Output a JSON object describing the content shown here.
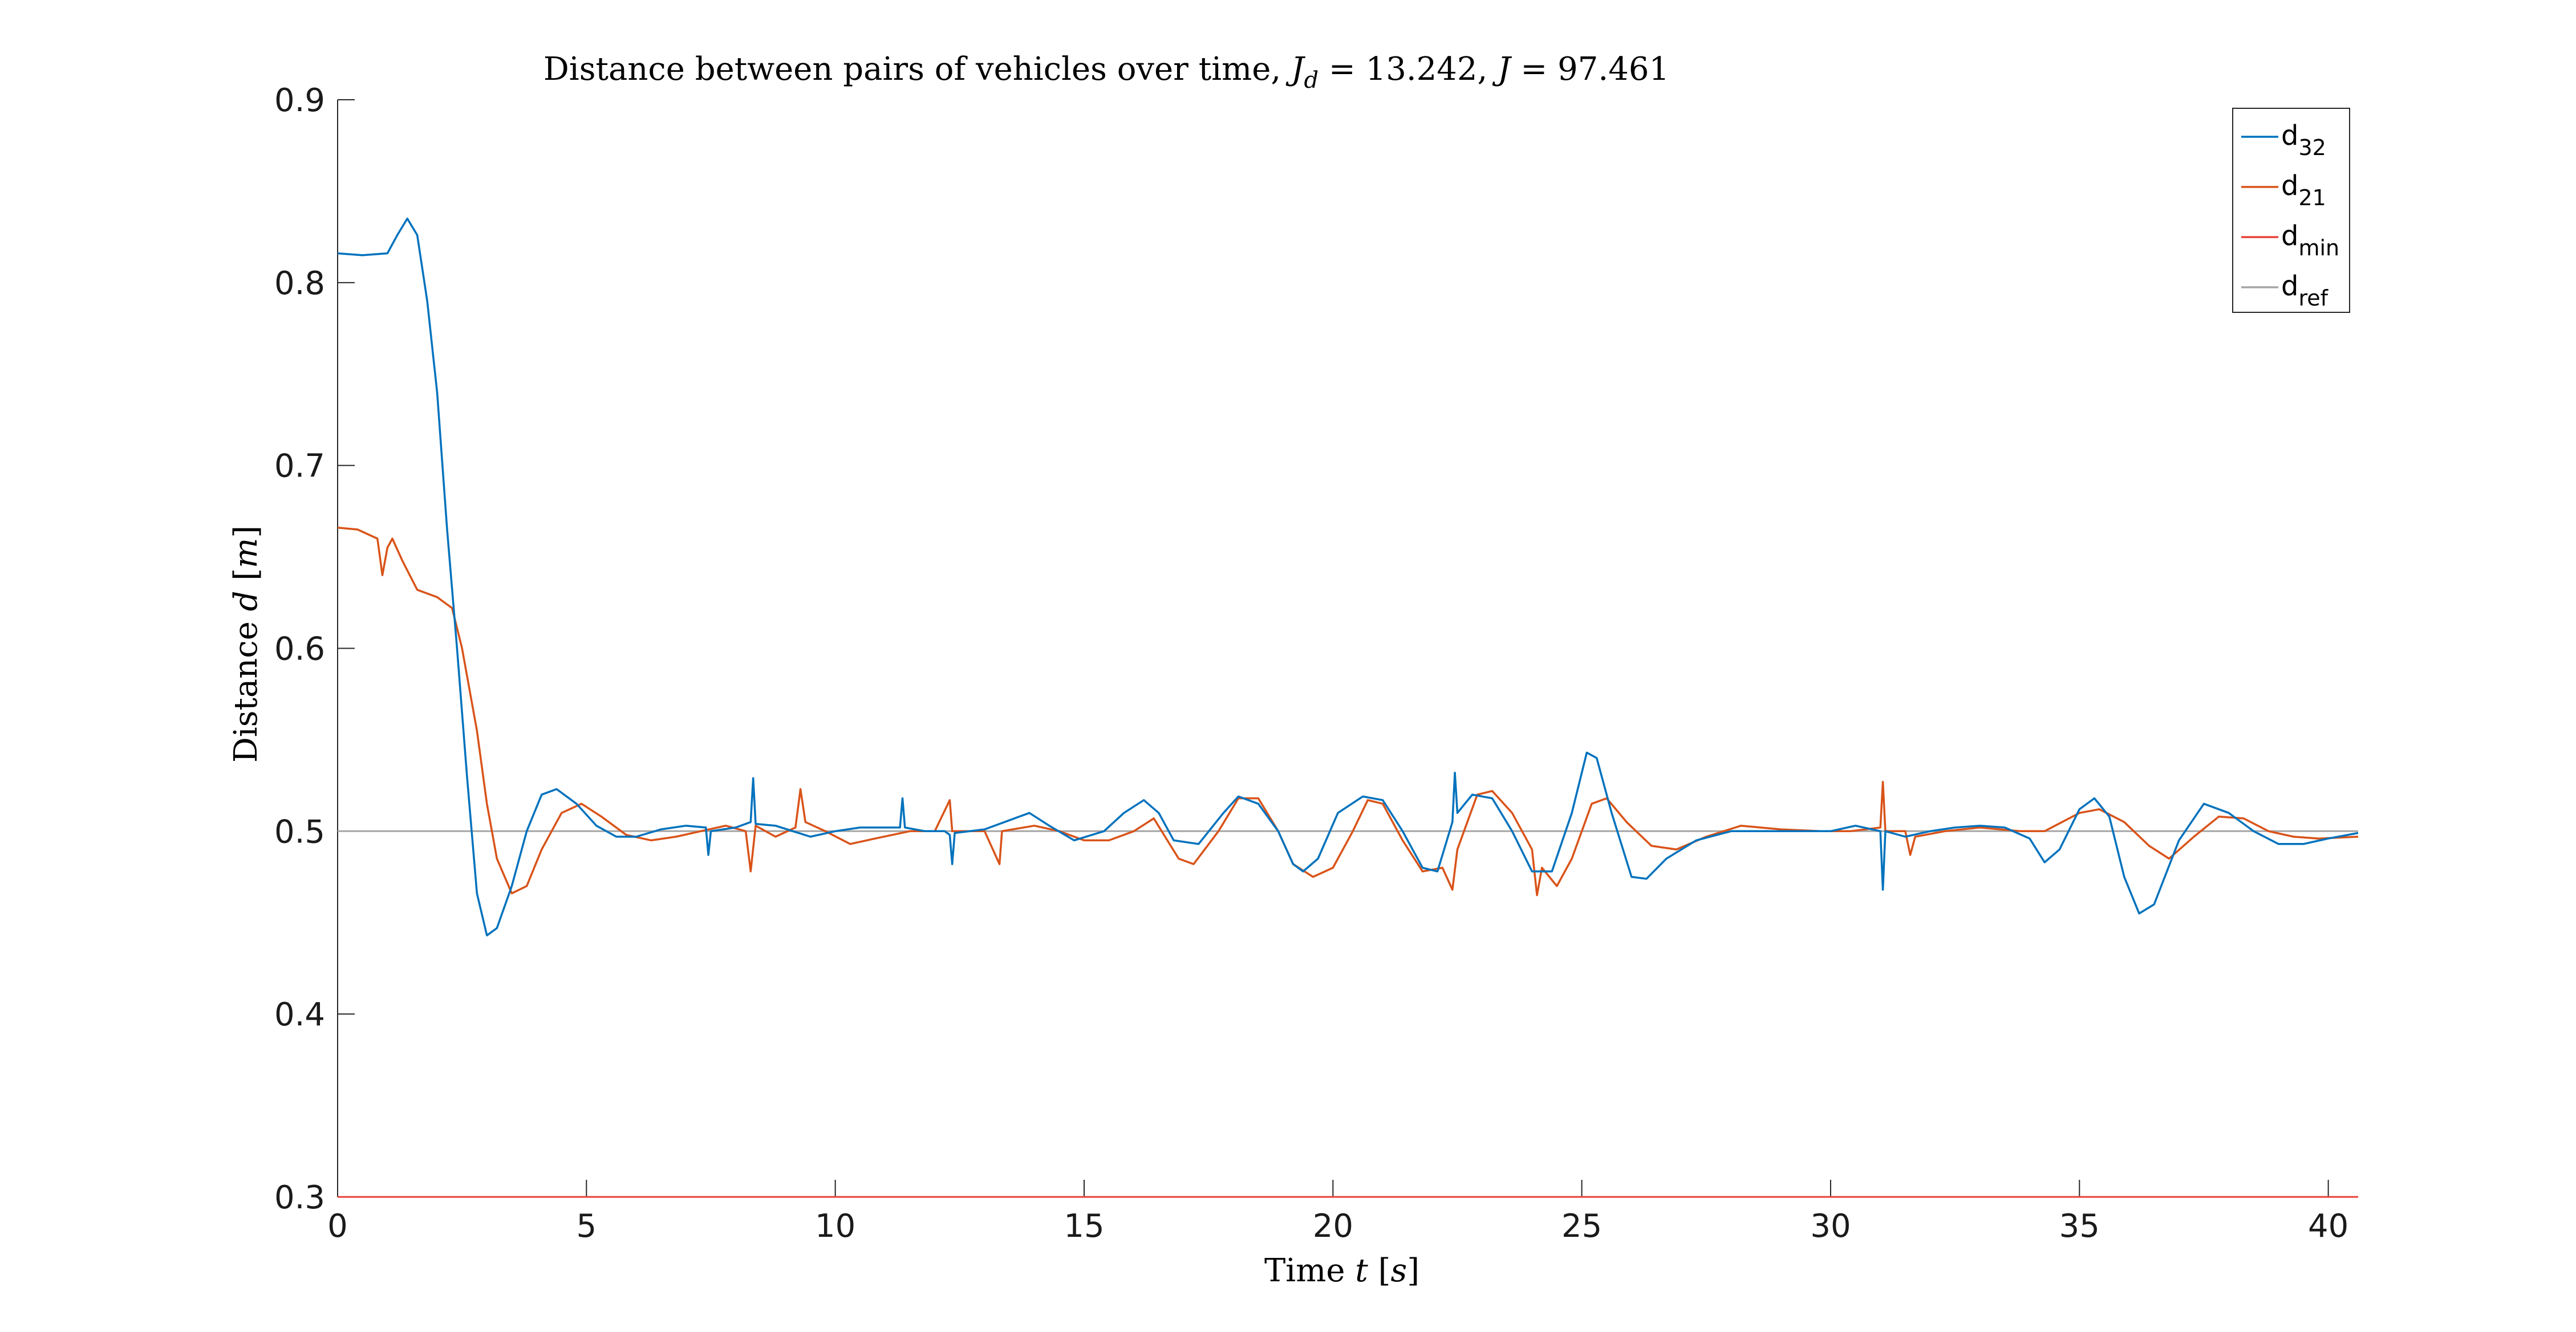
{
  "chart_data": {
    "type": "line",
    "title": "Distance between pairs of vehicles over time, J_d = 13.242, J = 97.461",
    "title_parts": {
      "prefix": "Distance between pairs of vehicles over time, ",
      "jd_symbol": "J",
      "jd_sub": "d",
      "jd_value": " = 13.242, ",
      "j_symbol": "J",
      "j_value": " = 97.461"
    },
    "xlabel": "Time t [s]",
    "xlabel_parts": {
      "prefix": "Time ",
      "var": "t",
      "unit_open": " [",
      "unit": "s",
      "unit_close": "]"
    },
    "ylabel": "Distance d [m]",
    "ylabel_parts": {
      "prefix": "Distance ",
      "var": "d",
      "unit_open": " [",
      "unit": "m",
      "unit_close": "]"
    },
    "xlim": [
      0,
      40.6
    ],
    "ylim": [
      0.3,
      0.9
    ],
    "xticks": [
      0,
      5,
      10,
      15,
      20,
      25,
      30,
      35,
      40
    ],
    "yticks": [
      0.3,
      0.4,
      0.5,
      0.6,
      0.7,
      0.8,
      0.9
    ],
    "xtick_labels": [
      "0",
      "5",
      "10",
      "15",
      "20",
      "25",
      "30",
      "35",
      "40"
    ],
    "ytick_labels": [
      "0.3",
      "0.4",
      "0.5",
      "0.6",
      "0.7",
      "0.8",
      "0.9"
    ],
    "grid": false,
    "legend_position": "top-right",
    "series": [
      {
        "name": "d32",
        "label_base": "d",
        "label_sub": "32",
        "color": "#0072BD",
        "points": [
          [
            0,
            0.816
          ],
          [
            0.5,
            0.815
          ],
          [
            1.0,
            0.816
          ],
          [
            1.2,
            0.826
          ],
          [
            1.4,
            0.835
          ],
          [
            1.6,
            0.826
          ],
          [
            1.8,
            0.79
          ],
          [
            2.0,
            0.74
          ],
          [
            2.2,
            0.665
          ],
          [
            2.4,
            0.6
          ],
          [
            2.6,
            0.53
          ],
          [
            2.8,
            0.466
          ],
          [
            3.0,
            0.443
          ],
          [
            3.2,
            0.447
          ],
          [
            3.5,
            0.47
          ],
          [
            3.8,
            0.5
          ],
          [
            4.1,
            0.52
          ],
          [
            4.4,
            0.523
          ],
          [
            4.8,
            0.515
          ],
          [
            5.2,
            0.503
          ],
          [
            5.6,
            0.497
          ],
          [
            6.0,
            0.497
          ],
          [
            6.5,
            0.501
          ],
          [
            7.0,
            0.503
          ],
          [
            7.4,
            0.502
          ],
          [
            7.45,
            0.487
          ],
          [
            7.5,
            0.5
          ],
          [
            8.0,
            0.502
          ],
          [
            8.3,
            0.505
          ],
          [
            8.35,
            0.529
          ],
          [
            8.4,
            0.504
          ],
          [
            8.8,
            0.503
          ],
          [
            9.5,
            0.497
          ],
          [
            10.0,
            0.5
          ],
          [
            10.5,
            0.502
          ],
          [
            11.0,
            0.502
          ],
          [
            11.3,
            0.502
          ],
          [
            11.35,
            0.518
          ],
          [
            11.4,
            0.502
          ],
          [
            11.8,
            0.5
          ],
          [
            12.2,
            0.5
          ],
          [
            12.3,
            0.498
          ],
          [
            12.35,
            0.482
          ],
          [
            12.4,
            0.499
          ],
          [
            13.0,
            0.501
          ],
          [
            13.6,
            0.507
          ],
          [
            13.9,
            0.51
          ],
          [
            14.3,
            0.503
          ],
          [
            14.8,
            0.495
          ],
          [
            15.4,
            0.5
          ],
          [
            15.8,
            0.51
          ],
          [
            16.2,
            0.517
          ],
          [
            16.5,
            0.51
          ],
          [
            16.8,
            0.495
          ],
          [
            17.3,
            0.493
          ],
          [
            17.8,
            0.51
          ],
          [
            18.1,
            0.519
          ],
          [
            18.5,
            0.515
          ],
          [
            18.9,
            0.5
          ],
          [
            19.2,
            0.482
          ],
          [
            19.4,
            0.478
          ],
          [
            19.7,
            0.485
          ],
          [
            20.1,
            0.51
          ],
          [
            20.6,
            0.519
          ],
          [
            21.0,
            0.517
          ],
          [
            21.4,
            0.5
          ],
          [
            21.8,
            0.48
          ],
          [
            22.1,
            0.478
          ],
          [
            22.4,
            0.505
          ],
          [
            22.45,
            0.532
          ],
          [
            22.5,
            0.51
          ],
          [
            22.8,
            0.52
          ],
          [
            23.2,
            0.518
          ],
          [
            23.6,
            0.5
          ],
          [
            24.0,
            0.478
          ],
          [
            24.4,
            0.478
          ],
          [
            24.8,
            0.51
          ],
          [
            25.1,
            0.543
          ],
          [
            25.3,
            0.54
          ],
          [
            25.6,
            0.51
          ],
          [
            26.0,
            0.475
          ],
          [
            26.3,
            0.474
          ],
          [
            26.7,
            0.485
          ],
          [
            27.3,
            0.495
          ],
          [
            28.0,
            0.5
          ],
          [
            29.0,
            0.5
          ],
          [
            30.0,
            0.5
          ],
          [
            30.5,
            0.503
          ],
          [
            31.0,
            0.5
          ],
          [
            31.05,
            0.468
          ],
          [
            31.1,
            0.5
          ],
          [
            31.5,
            0.497
          ],
          [
            32.0,
            0.5
          ],
          [
            32.5,
            0.502
          ],
          [
            33.0,
            0.503
          ],
          [
            33.5,
            0.502
          ],
          [
            34.0,
            0.496
          ],
          [
            34.3,
            0.483
          ],
          [
            34.6,
            0.49
          ],
          [
            35.0,
            0.512
          ],
          [
            35.3,
            0.518
          ],
          [
            35.6,
            0.508
          ],
          [
            35.9,
            0.475
          ],
          [
            36.2,
            0.455
          ],
          [
            36.5,
            0.46
          ],
          [
            37.0,
            0.495
          ],
          [
            37.5,
            0.515
          ],
          [
            38.0,
            0.51
          ],
          [
            38.5,
            0.5
          ],
          [
            39.0,
            0.493
          ],
          [
            39.5,
            0.493
          ],
          [
            40.0,
            0.496
          ],
          [
            40.6,
            0.499
          ]
        ]
      },
      {
        "name": "d21",
        "label_base": "d",
        "label_sub": "21",
        "color": "#D95319",
        "points": [
          [
            0,
            0.666
          ],
          [
            0.4,
            0.665
          ],
          [
            0.8,
            0.66
          ],
          [
            0.9,
            0.64
          ],
          [
            1.0,
            0.655
          ],
          [
            1.1,
            0.66
          ],
          [
            1.3,
            0.648
          ],
          [
            1.6,
            0.632
          ],
          [
            2.0,
            0.628
          ],
          [
            2.3,
            0.622
          ],
          [
            2.5,
            0.6
          ],
          [
            2.8,
            0.555
          ],
          [
            3.0,
            0.515
          ],
          [
            3.2,
            0.485
          ],
          [
            3.5,
            0.466
          ],
          [
            3.8,
            0.47
          ],
          [
            4.1,
            0.49
          ],
          [
            4.5,
            0.51
          ],
          [
            4.9,
            0.515
          ],
          [
            5.3,
            0.508
          ],
          [
            5.8,
            0.498
          ],
          [
            6.3,
            0.495
          ],
          [
            6.8,
            0.497
          ],
          [
            7.3,
            0.5
          ],
          [
            7.8,
            0.503
          ],
          [
            8.2,
            0.5
          ],
          [
            8.3,
            0.478
          ],
          [
            8.4,
            0.503
          ],
          [
            8.8,
            0.497
          ],
          [
            9.2,
            0.502
          ],
          [
            9.3,
            0.523
          ],
          [
            9.4,
            0.505
          ],
          [
            9.8,
            0.5
          ],
          [
            10.3,
            0.493
          ],
          [
            10.8,
            0.496
          ],
          [
            11.5,
            0.5
          ],
          [
            12.0,
            0.5
          ],
          [
            12.3,
            0.517
          ],
          [
            12.35,
            0.5
          ],
          [
            13.0,
            0.5
          ],
          [
            13.3,
            0.482
          ],
          [
            13.35,
            0.5
          ],
          [
            14.0,
            0.503
          ],
          [
            14.5,
            0.5
          ],
          [
            15.0,
            0.495
          ],
          [
            15.5,
            0.495
          ],
          [
            16.0,
            0.5
          ],
          [
            16.4,
            0.507
          ],
          [
            16.9,
            0.485
          ],
          [
            17.2,
            0.482
          ],
          [
            17.7,
            0.5
          ],
          [
            18.1,
            0.518
          ],
          [
            18.5,
            0.518
          ],
          [
            18.9,
            0.5
          ],
          [
            19.2,
            0.482
          ],
          [
            19.6,
            0.475
          ],
          [
            20.0,
            0.48
          ],
          [
            20.4,
            0.5
          ],
          [
            20.7,
            0.517
          ],
          [
            21.0,
            0.515
          ],
          [
            21.4,
            0.495
          ],
          [
            21.8,
            0.478
          ],
          [
            22.2,
            0.48
          ],
          [
            22.4,
            0.468
          ],
          [
            22.5,
            0.49
          ],
          [
            22.9,
            0.52
          ],
          [
            23.2,
            0.522
          ],
          [
            23.6,
            0.51
          ],
          [
            24.0,
            0.49
          ],
          [
            24.1,
            0.465
          ],
          [
            24.2,
            0.48
          ],
          [
            24.5,
            0.47
          ],
          [
            24.8,
            0.485
          ],
          [
            25.2,
            0.515
          ],
          [
            25.5,
            0.518
          ],
          [
            25.9,
            0.505
          ],
          [
            26.4,
            0.492
          ],
          [
            26.9,
            0.49
          ],
          [
            27.5,
            0.497
          ],
          [
            28.2,
            0.503
          ],
          [
            29.0,
            0.501
          ],
          [
            29.8,
            0.5
          ],
          [
            30.4,
            0.5
          ],
          [
            31.0,
            0.502
          ],
          [
            31.05,
            0.527
          ],
          [
            31.1,
            0.5
          ],
          [
            31.5,
            0.5
          ],
          [
            31.6,
            0.487
          ],
          [
            31.7,
            0.497
          ],
          [
            32.3,
            0.5
          ],
          [
            33.0,
            0.502
          ],
          [
            33.8,
            0.5
          ],
          [
            34.3,
            0.5
          ],
          [
            35.0,
            0.51
          ],
          [
            35.4,
            0.512
          ],
          [
            35.9,
            0.505
          ],
          [
            36.4,
            0.492
          ],
          [
            36.8,
            0.485
          ],
          [
            37.3,
            0.497
          ],
          [
            37.8,
            0.508
          ],
          [
            38.3,
            0.507
          ],
          [
            38.8,
            0.5
          ],
          [
            39.3,
            0.497
          ],
          [
            39.8,
            0.496
          ],
          [
            40.6,
            0.497
          ]
        ]
      },
      {
        "name": "dmin",
        "label_base": "d",
        "label_sub": "min",
        "color": "#E8413A",
        "points": [
          [
            0,
            0.3
          ],
          [
            40.6,
            0.3
          ]
        ]
      },
      {
        "name": "dref",
        "label_base": "d",
        "label_sub": "ref",
        "color": "#A6A6A6",
        "points": [
          [
            0,
            0.5
          ],
          [
            40.6,
            0.5
          ]
        ]
      }
    ]
  }
}
